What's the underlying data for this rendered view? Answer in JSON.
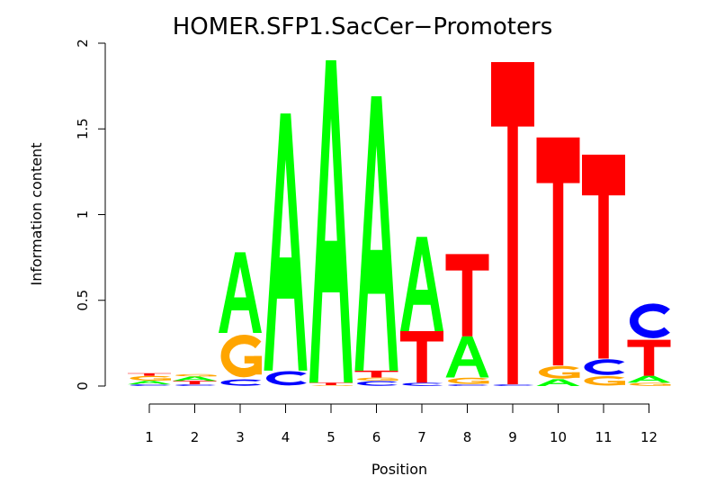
{
  "chart_data": {
    "type": "sequence-logo",
    "title": "HOMER.SFP1.SacCer−Promoters",
    "xlabel": "Position",
    "ylabel": "Information content",
    "ylim": [
      0,
      2
    ],
    "y_ticks": [
      "0",
      "0.5",
      "1",
      "1.5",
      "2"
    ],
    "positions": [
      "1",
      "2",
      "3",
      "4",
      "5",
      "6",
      "7",
      "8",
      "9",
      "10",
      "11",
      "12"
    ],
    "colors": {
      "A": "#00ff00",
      "C": "#0000ff",
      "G": "#ffa500",
      "T": "#ff0000"
    },
    "stacks": [
      [
        {
          "letter": "C",
          "height": 0.01
        },
        {
          "letter": "A",
          "height": 0.02
        },
        {
          "letter": "G",
          "height": 0.03
        },
        {
          "letter": "T",
          "height": 0.015
        }
      ],
      [
        {
          "letter": "C",
          "height": 0.01
        },
        {
          "letter": "T",
          "height": 0.02
        },
        {
          "letter": "A",
          "height": 0.025
        },
        {
          "letter": "G",
          "height": 0.015
        }
      ],
      [
        {
          "letter": "C",
          "height": 0.04
        },
        {
          "letter": "G",
          "height": 0.27
        },
        {
          "letter": "A",
          "height": 0.47
        }
      ],
      [
        {
          "letter": "C",
          "height": 0.09
        },
        {
          "letter": "A",
          "height": 1.5
        }
      ],
      [
        {
          "letter": "G",
          "height": 0.005
        },
        {
          "letter": "T",
          "height": 0.015
        },
        {
          "letter": "A",
          "height": 1.88
        }
      ],
      [
        {
          "letter": "C",
          "height": 0.03
        },
        {
          "letter": "G",
          "height": 0.02
        },
        {
          "letter": "T",
          "height": 0.04
        },
        {
          "letter": "A",
          "height": 1.6
        }
      ],
      [
        {
          "letter": "C",
          "height": 0.02
        },
        {
          "letter": "T",
          "height": 0.3
        },
        {
          "letter": "A",
          "height": 0.55
        }
      ],
      [
        {
          "letter": "C",
          "height": 0.01
        },
        {
          "letter": "G",
          "height": 0.04
        },
        {
          "letter": "A",
          "height": 0.24
        },
        {
          "letter": "T",
          "height": 0.48
        }
      ],
      [
        {
          "letter": "C",
          "height": 0.01
        },
        {
          "letter": "T",
          "height": 1.88
        }
      ],
      [
        {
          "letter": "A",
          "height": 0.04
        },
        {
          "letter": "G",
          "height": 0.08
        },
        {
          "letter": "T",
          "height": 1.33
        }
      ],
      [
        {
          "letter": "G",
          "height": 0.06
        },
        {
          "letter": "C",
          "height": 0.1
        },
        {
          "letter": "T",
          "height": 1.19
        }
      ],
      [
        {
          "letter": "G",
          "height": 0.02
        },
        {
          "letter": "A",
          "height": 0.04
        },
        {
          "letter": "T",
          "height": 0.21
        },
        {
          "letter": "C",
          "height": 0.22
        }
      ]
    ]
  }
}
